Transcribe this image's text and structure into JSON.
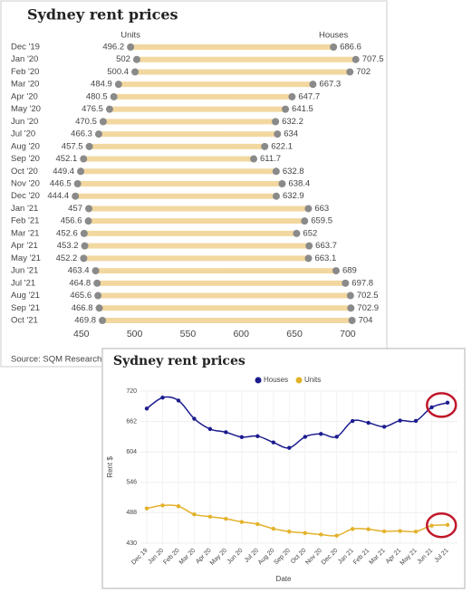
{
  "chart_data": [
    {
      "type": "dumbbell",
      "title": "Sydney rent prices",
      "categories": [
        "Dec '19",
        "Jan '20",
        "Feb '20",
        "Mar '20",
        "Apr '20",
        "May '20",
        "Jun '20",
        "Jul '20",
        "Aug '20",
        "Sep '20",
        "Oct '20",
        "Nov '20",
        "Dec '20",
        "Jan '21",
        "Feb '21",
        "Mar '21",
        "Apr '21",
        "May '21",
        "Jun '21",
        "Jul '21",
        "Aug '21",
        "Sep '21",
        "Oct '21"
      ],
      "series": [
        {
          "name": "Units",
          "color": "#8a8a8a",
          "values": [
            496.2,
            502,
            500.4,
            484.9,
            480.5,
            476.5,
            470.5,
            466.3,
            457.5,
            452.1,
            449.4,
            446.5,
            444.4,
            457,
            456.6,
            452.6,
            453.2,
            452.2,
            463.4,
            464.8,
            465.6,
            466.8,
            469.8
          ]
        },
        {
          "name": "Houses",
          "color": "#8a8a8a",
          "values": [
            686.6,
            707.5,
            702,
            667.3,
            647.7,
            641.5,
            632.2,
            634,
            622.1,
            611.7,
            632.8,
            638.4,
            632.9,
            663,
            659.5,
            652,
            663.7,
            663.1,
            689,
            697.8,
            702.5,
            702.9,
            704
          ]
        }
      ],
      "bar_color": "#f2d8a0",
      "xlim": [
        440,
        712
      ],
      "xticks": [
        450,
        500,
        550,
        600,
        650,
        700
      ],
      "source": "Source: SQM Research"
    },
    {
      "type": "line",
      "title": "Sydney rent prices",
      "categories": [
        "Dec 19",
        "Jan 20",
        "Feb 20",
        "Mar 20",
        "Apr 20",
        "May 20",
        "Jun 20",
        "Jul 20",
        "Aug 20",
        "Sep 20",
        "Oct 20",
        "Nov 20",
        "Dec 20",
        "Jan 21",
        "Feb 21",
        "Mar 21",
        "Apr 21",
        "May 21",
        "Jun 21",
        "Jul 21"
      ],
      "series": [
        {
          "name": "Houses",
          "color": "#1c1c8f",
          "values": [
            686.6,
            707.5,
            702,
            667.3,
            647.7,
            641.5,
            632.2,
            634,
            622.1,
            611.7,
            632.8,
            638.4,
            632.9,
            663,
            659.5,
            652,
            663.7,
            663.1,
            689,
            697.8
          ]
        },
        {
          "name": "Units",
          "color": "#e3b12a",
          "values": [
            496.2,
            502,
            500.4,
            484.9,
            480.5,
            476.5,
            470.5,
            466.3,
            457.5,
            452.1,
            449.4,
            446.5,
            444.4,
            457,
            456.6,
            452.6,
            453.2,
            452.2,
            463.4,
            464.8
          ]
        }
      ],
      "ylim": [
        430,
        720
      ],
      "yticks": [
        430,
        488,
        546,
        604,
        662,
        720
      ],
      "xlabel": "Date",
      "ylabel": "Rent $",
      "grid": true,
      "legend": "top"
    }
  ]
}
